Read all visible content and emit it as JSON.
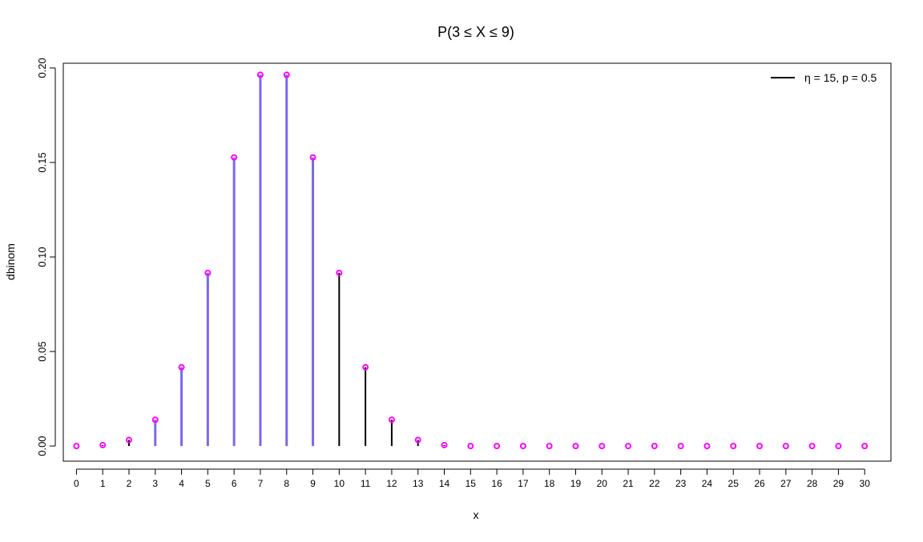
{
  "chart_data": {
    "type": "bar",
    "title": "P(3 ≤ X ≤ 9)",
    "xlabel": "x",
    "ylabel": "dbinom",
    "xlim": [
      -0.5,
      31.0
    ],
    "ylim": [
      -0.008,
      0.2025
    ],
    "x": [
      0,
      1,
      2,
      3,
      4,
      5,
      6,
      7,
      8,
      9,
      10,
      11,
      12,
      13,
      14,
      15,
      16,
      17,
      18,
      19,
      20,
      21,
      22,
      23,
      24,
      25,
      26,
      27,
      28,
      29,
      30
    ],
    "values": [
      0.0,
      0.0005,
      0.0032,
      0.0139,
      0.0417,
      0.0916,
      0.1527,
      0.1964,
      0.1964,
      0.1527,
      0.0916,
      0.0417,
      0.0139,
      0.0032,
      0.0005,
      0.0,
      0,
      0,
      0,
      0,
      0,
      0,
      0,
      0,
      0,
      0,
      0,
      0,
      0,
      0,
      0
    ],
    "highlight_range": [
      3,
      9
    ],
    "yticks": [
      "0.00",
      "0.05",
      "0.10",
      "0.15",
      "0.20"
    ],
    "ytick_values": [
      0.0,
      0.05,
      0.1,
      0.15,
      0.2
    ],
    "xtick_labels": [
      "0",
      "1",
      "2",
      "3",
      "4",
      "5",
      "6",
      "7",
      "8",
      "9",
      "10",
      "11",
      "12",
      "13",
      "14",
      "15",
      "16",
      "17",
      "18",
      "19",
      "20",
      "21",
      "22",
      "23",
      "24",
      "25",
      "26",
      "27",
      "28",
      "29",
      "30"
    ],
    "legend": {
      "label": "η = 15, p = 0.5",
      "placement": "top-right"
    },
    "colors": {
      "stem": "#000000",
      "highlight": "#7b68ee",
      "point": "#ff00ff"
    },
    "grid": false
  }
}
